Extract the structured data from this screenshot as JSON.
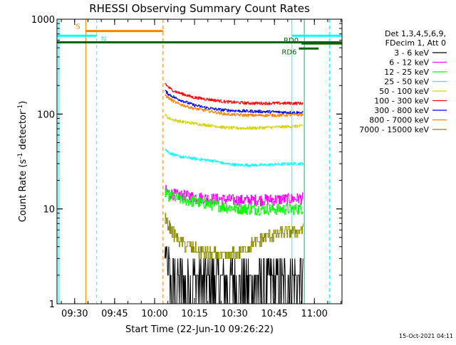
{
  "chart_data": {
    "type": "line",
    "title": "RHESSI Observing Summary Count Rates",
    "xlabel": "Start Time (22-Jun-10 09:26:22)",
    "ylabel": "Count Rate (s⁻¹ detector⁻¹)",
    "ylabel_parts": {
      "pre": "Count Rate (s",
      "sup1": "-1",
      "mid": " detector",
      "sup2": "-1",
      "post": ")"
    },
    "x_unit": "minutes after 09:26:22",
    "xlim": [
      -3,
      104
    ],
    "ylim": [
      1,
      1000
    ],
    "y_scale": "log",
    "x_ticks": [
      {
        "x": 3.63,
        "label": "09:30"
      },
      {
        "x": 18.63,
        "label": "09:45"
      },
      {
        "x": 33.63,
        "label": "10:00"
      },
      {
        "x": 48.63,
        "label": "10:15"
      },
      {
        "x": 63.63,
        "label": "10:30"
      },
      {
        "x": 78.63,
        "label": "10:45"
      },
      {
        "x": 93.63,
        "label": "11:00"
      }
    ],
    "y_ticks": [
      {
        "y": 1,
        "label": "1"
      },
      {
        "y": 10,
        "label": "10"
      },
      {
        "y": 100,
        "label": "100"
      },
      {
        "y": 1000,
        "label": "1000"
      }
    ],
    "legend": {
      "placement": "right",
      "header": [
        "Det 1,3,4,5,6,9,",
        "FDecim 1, Att 0"
      ]
    },
    "flags": [
      {
        "label": "S",
        "x_start": 7.8,
        "x_end": 36.8,
        "y": 750,
        "color": "#ff8000"
      },
      {
        "label": "N",
        "x_start": -3,
        "x_end": 11.9,
        "y": 670,
        "color": "#00ffff"
      },
      {
        "label": "N",
        "x_start": 85.2,
        "x_end": 104,
        "y": 670,
        "color": "#00ffff"
      },
      {
        "label": "",
        "x_start": -3,
        "x_end": 104,
        "y": 570,
        "color": "#006400"
      },
      {
        "label": "RD0",
        "x_start": 88.8,
        "x_end": 104,
        "y": 555,
        "color": "#006400"
      },
      {
        "label": "RD6",
        "x_start": 87.8,
        "x_end": 95.2,
        "y": 490,
        "color": "#006400"
      }
    ],
    "vlines": [
      {
        "x": -2.4,
        "color": "#00ffff",
        "style": "solid"
      },
      {
        "x": 7.8,
        "color": "#ff8000",
        "style": "solid"
      },
      {
        "x": 11.9,
        "color": "#00ffff",
        "style": "dashed"
      },
      {
        "x": 36.8,
        "color": "#ff8000",
        "style": "dashed"
      },
      {
        "x": 85.2,
        "color": "#00ffff",
        "style": "solid"
      },
      {
        "x": 89.8,
        "color": "#00ffff",
        "style": "solid"
      },
      {
        "x": 89.9,
        "color": "#ff8000",
        "style": "solid"
      },
      {
        "x": 99.3,
        "color": "#00ffff",
        "style": "dashed"
      }
    ],
    "series": [
      {
        "name": "3 - 6 keV",
        "color": "#000000",
        "x": [
          37.5,
          40,
          42,
          45,
          48,
          52,
          56,
          60,
          65,
          70,
          75,
          80,
          85,
          89.5
        ],
        "y": [
          3,
          2.6,
          2.4,
          2.2,
          2,
          1.8,
          1.6,
          1.5,
          1.5,
          1.5,
          1.7,
          2,
          2.2,
          2.4
        ]
      },
      {
        "name": "6 - 12 keV",
        "color": "#ff00ff",
        "x": [
          37.5,
          38.5,
          40,
          42,
          45,
          48,
          52,
          56,
          60,
          65,
          70,
          75,
          80,
          85,
          89.5
        ],
        "y": [
          16,
          15,
          14.5,
          14,
          13.8,
          13.5,
          13,
          12.8,
          12.6,
          12.4,
          12.4,
          12.5,
          12.6,
          12.8,
          13
        ]
      },
      {
        "name": "12 - 25 keV",
        "color": "#00ff00",
        "x": [
          37.5,
          38.5,
          40,
          42,
          45,
          48,
          52,
          56,
          60,
          65,
          70,
          75,
          80,
          85,
          89.5
        ],
        "y": [
          15,
          14,
          13.5,
          13,
          12.5,
          12,
          11.5,
          11,
          10.5,
          10.2,
          10,
          10,
          10,
          10,
          10.2
        ]
      },
      {
        "name": "25 - 50 keV",
        "color": "#00ffff",
        "x": [
          37.5,
          38.5,
          40,
          42,
          45,
          48,
          52,
          56,
          60,
          65,
          70,
          75,
          80,
          85,
          89.5
        ],
        "y": [
          43,
          40,
          38,
          36,
          35,
          34,
          33,
          32,
          30,
          29,
          29,
          29,
          29.5,
          30,
          30
        ]
      },
      {
        "name": "50 - 100 keV",
        "color": "#d2d200",
        "x": [
          37.5,
          38.5,
          40,
          42,
          45,
          48,
          52,
          56,
          60,
          65,
          70,
          75,
          80,
          85,
          89.5
        ],
        "y": [
          98,
          92,
          88,
          85,
          82,
          80,
          77,
          75,
          72,
          71,
          71,
          72,
          73,
          74,
          75
        ]
      },
      {
        "name": "100 - 300 keV",
        "color": "#ff0000",
        "x": [
          37.5,
          38.5,
          40,
          42,
          45,
          48,
          52,
          56,
          60,
          65,
          70,
          75,
          80,
          85,
          89.5
        ],
        "y": [
          210,
          195,
          180,
          170,
          160,
          150,
          145,
          140,
          135,
          132,
          130,
          130,
          130,
          130,
          130
        ]
      },
      {
        "name": "300 - 800 keV",
        "color": "#0000ff",
        "x": [
          37.5,
          38.5,
          40,
          42,
          45,
          48,
          52,
          56,
          60,
          65,
          70,
          75,
          80,
          85,
          89.5
        ],
        "y": [
          175,
          165,
          155,
          145,
          135,
          125,
          118,
          113,
          110,
          108,
          107,
          106,
          105,
          104,
          103
        ]
      },
      {
        "name": "800 - 7000 keV",
        "color": "#ff8000",
        "x": [
          37.5,
          38.5,
          40,
          42,
          45,
          48,
          52,
          56,
          60,
          65,
          70,
          75,
          80,
          85,
          89.5
        ],
        "y": [
          160,
          150,
          140,
          130,
          122,
          115,
          110,
          105,
          100,
          98,
          97,
          97,
          97,
          98,
          98
        ]
      },
      {
        "name": "7000 - 15000 keV",
        "color": "#8b8b00",
        "x": [
          37.5,
          38.5,
          40,
          42,
          45,
          48,
          52,
          56,
          60,
          65,
          70,
          75,
          80,
          85,
          89.5
        ],
        "y": [
          8,
          7,
          6,
          5,
          4.2,
          3.8,
          3.5,
          3.3,
          3.2,
          3.5,
          4.2,
          5,
          5.5,
          5.8,
          6
        ]
      }
    ],
    "footer": "15-Oct-2021 04:11",
    "colors": {
      "axis": "#000000",
      "background": "#ffffff"
    }
  }
}
